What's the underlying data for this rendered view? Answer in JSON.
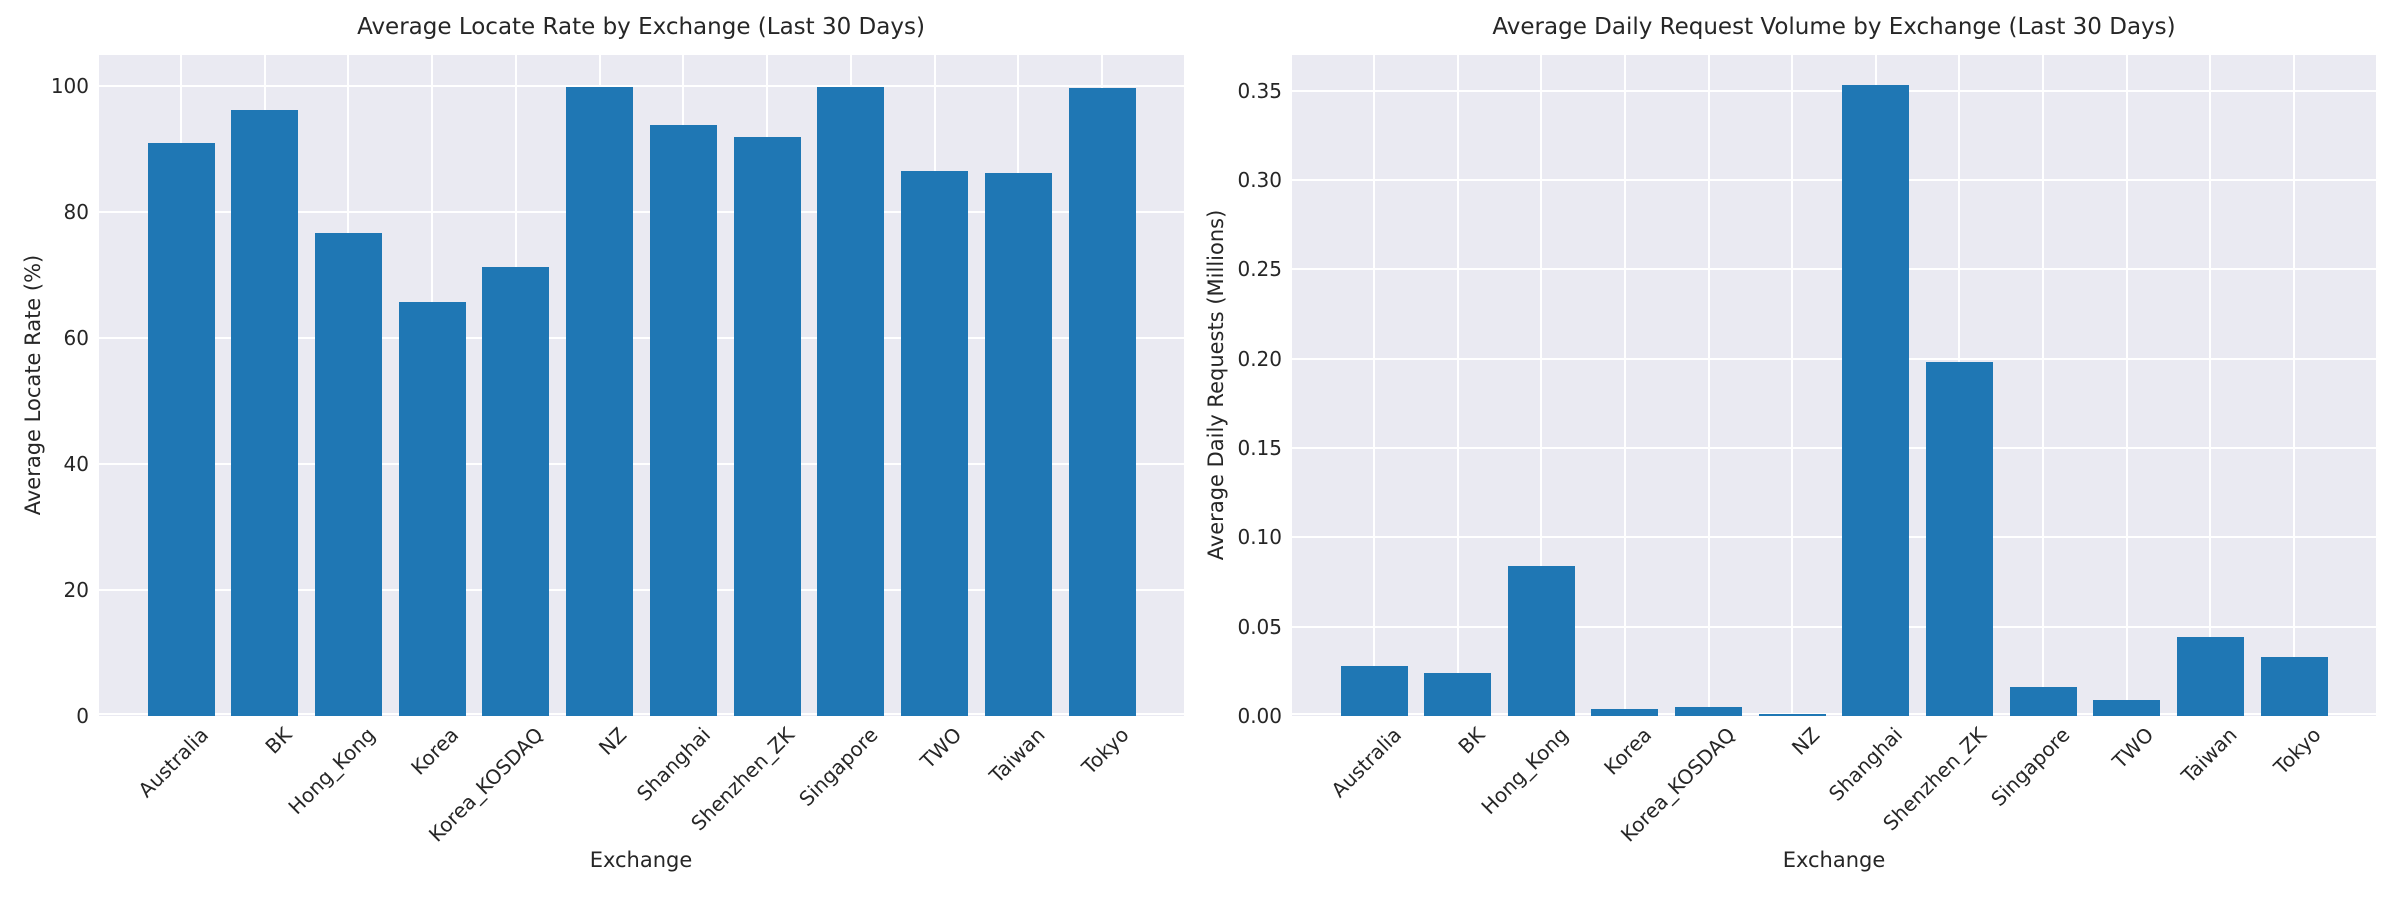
{
  "figure": {
    "background_color": "#ffffff",
    "plot_background_color": "#eaeaf2",
    "grid_color": "#ffffff",
    "bar_color": "#1f77b4",
    "text_color": "#262626"
  },
  "chart_data": [
    {
      "type": "bar",
      "title": "Average Locate Rate by Exchange (Last 30 Days)",
      "xlabel": "Exchange",
      "ylabel": "Average Locate Rate (%)",
      "categories": [
        "Australia",
        "BK",
        "Hong_Kong",
        "Korea",
        "Korea_KOSDAQ",
        "NZ",
        "Shanghai",
        "Shenzhen_ZK",
        "Singapore",
        "TWO",
        "Taiwan",
        "Tokyo"
      ],
      "values": [
        91.1,
        96.2,
        76.8,
        65.8,
        71.4,
        99.9,
        93.9,
        92.0,
        99.9,
        86.5,
        86.2,
        99.7
      ],
      "ylim": [
        0,
        105
      ],
      "yticks": [
        0,
        20,
        40,
        60,
        80,
        100
      ],
      "ytick_labels": [
        "0",
        "20",
        "40",
        "60",
        "80",
        "100"
      ],
      "grid": true,
      "legend": "none",
      "x_tick_rotation_deg": 45
    },
    {
      "type": "bar",
      "title": "Average Daily Request Volume by Exchange (Last 30 Days)",
      "xlabel": "Exchange",
      "ylabel": "Average Daily Requests (Millions)",
      "categories": [
        "Australia",
        "BK",
        "Hong_Kong",
        "Korea",
        "Korea_KOSDAQ",
        "NZ",
        "Shanghai",
        "Shenzhen_ZK",
        "Singapore",
        "TWO",
        "Taiwan",
        "Tokyo"
      ],
      "values": [
        0.028,
        0.024,
        0.084,
        0.004,
        0.005,
        0.001,
        0.353,
        0.198,
        0.016,
        0.009,
        0.044,
        0.033
      ],
      "ylim": [
        0,
        0.37
      ],
      "yticks": [
        0.0,
        0.05,
        0.1,
        0.15,
        0.2,
        0.25,
        0.3,
        0.35
      ],
      "ytick_labels": [
        "0.00",
        "0.05",
        "0.10",
        "0.15",
        "0.20",
        "0.25",
        "0.30",
        "0.35"
      ],
      "grid": true,
      "legend": "none",
      "x_tick_rotation_deg": 45
    }
  ]
}
